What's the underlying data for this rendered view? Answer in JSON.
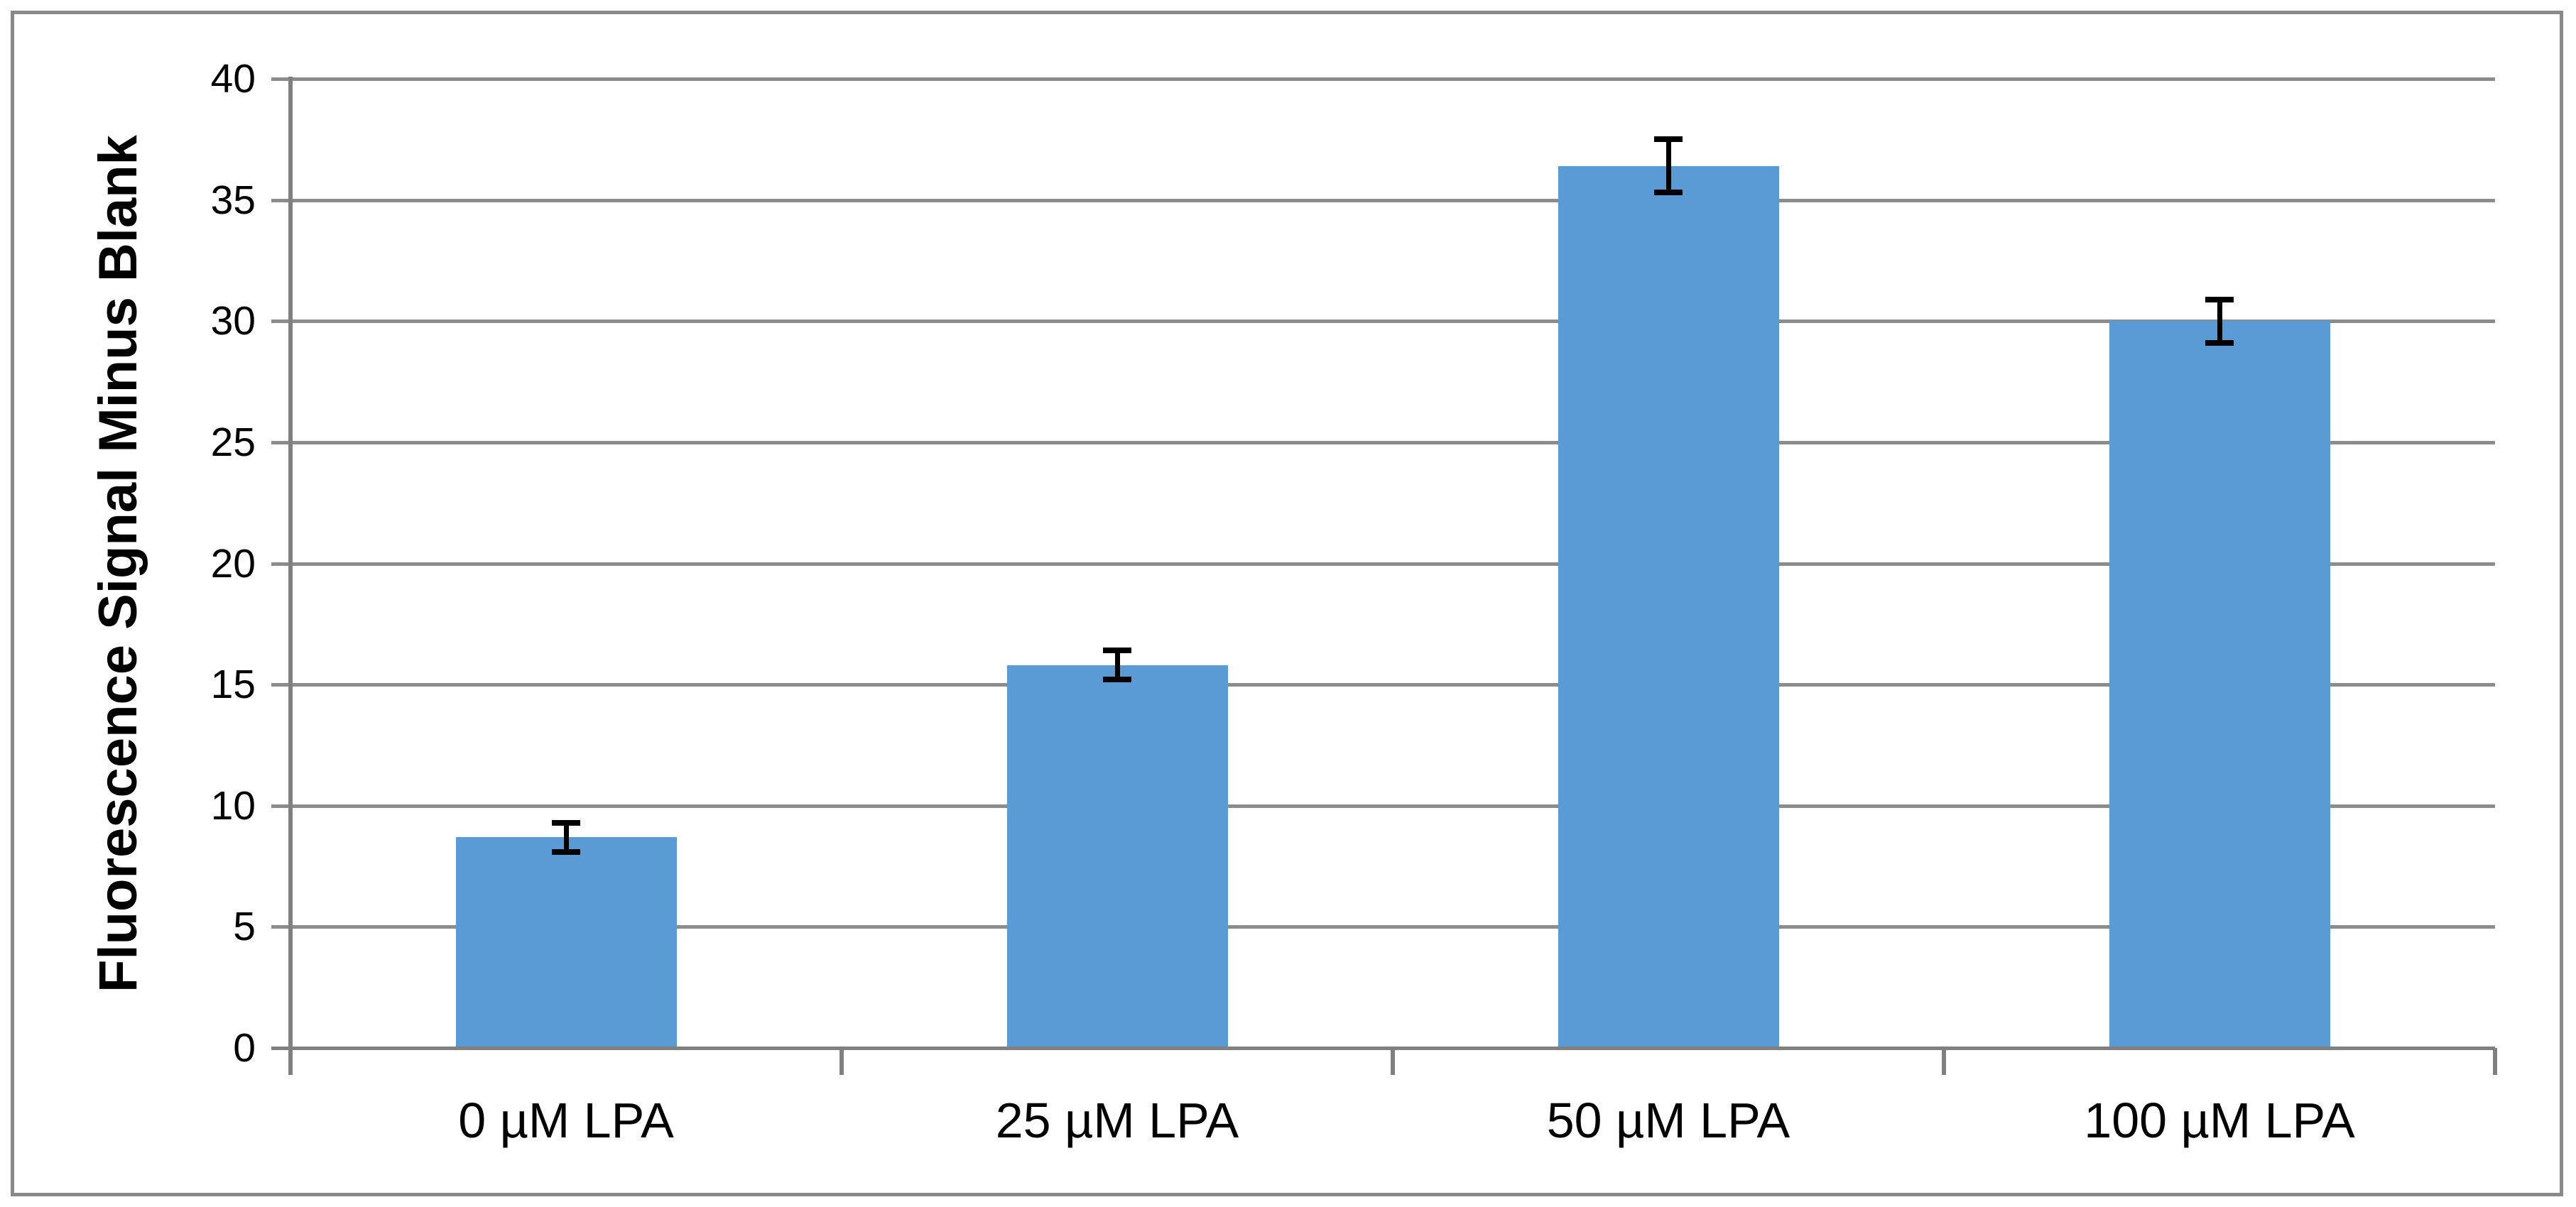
{
  "chart_data": {
    "type": "bar",
    "title": "",
    "xlabel": "",
    "ylabel": "Fluorescence Signal Minus Blank",
    "categories": [
      "0 µM LPA",
      "25 µM LPA",
      "50 µM LPA",
      "100 µM LPA"
    ],
    "values": [
      8.7,
      15.8,
      36.4,
      30.0
    ],
    "error_bars": [
      0.6,
      0.6,
      1.1,
      0.9
    ],
    "ylim": [
      0,
      40
    ],
    "yticks": [
      0,
      5,
      10,
      15,
      20,
      25,
      30,
      35,
      40
    ],
    "grid": true,
    "legend": "none",
    "colors": {
      "bar": "#5B9BD5",
      "gridline": "#8C8C8C",
      "axis": "#808080",
      "chart_border": "#898989",
      "error_bar": "#000000",
      "text": "#000000",
      "background": "#FFFFFF"
    }
  }
}
